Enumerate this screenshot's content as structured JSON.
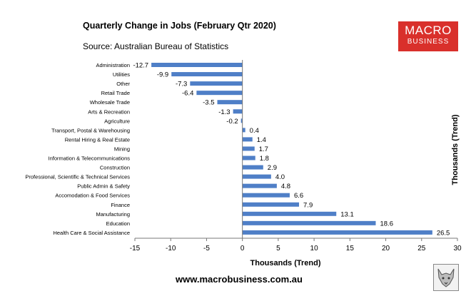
{
  "header": {
    "title": "Quarterly Change in Jobs (February Qtr 2020)",
    "source": "Source: Australian Bureau of Statistics"
  },
  "logo": {
    "line1": "MACRO",
    "line2": "BUSINESS",
    "color": "#d9302b"
  },
  "footer": {
    "website": "www.macrobusiness.com.au"
  },
  "chart_data": {
    "type": "bar",
    "orientation": "horizontal",
    "bar_color": "#4f7fc7",
    "categories": [
      "Administration",
      "Utilities",
      "Other",
      "Retail Trade",
      "Wholesale Trade",
      "Arts & Recreation",
      "Agriculture",
      "Transport, Postal & Warehousing",
      "Rental Hiring & Real Estate",
      "Mining",
      "Information & Telecommunications",
      "Construction",
      "Professional, Scientific & Technical Services",
      "Public Admin & Safety",
      "Accomodation & Food Services",
      "Finance",
      "Manufacturing",
      "Education",
      "Health Care & Social Assistance"
    ],
    "values": [
      -12.7,
      -9.9,
      -7.3,
      -6.4,
      -3.5,
      -1.3,
      -0.2,
      0.4,
      1.4,
      1.7,
      1.8,
      2.9,
      4.0,
      4.8,
      6.6,
      7.9,
      13.1,
      18.6,
      26.5
    ],
    "value_labels": [
      "-12.7",
      "-9.9",
      "-7.3",
      "-6.4",
      "-3.5",
      "-1.3",
      "-0.2",
      "0.4",
      "1.4",
      "1.7",
      "1.8",
      "2.9",
      "4.0",
      "4.8",
      "6.6",
      "7.9",
      "13.1",
      "18.6",
      "26.5"
    ],
    "xlim": [
      -15,
      30
    ],
    "xticks": [
      -15,
      -10,
      -5,
      0,
      5,
      10,
      15,
      20,
      25,
      30
    ],
    "xlabel": "Thousands (Trend)",
    "ylabel_right": "Thousands (Trend)",
    "grid": false,
    "legend": "none"
  }
}
